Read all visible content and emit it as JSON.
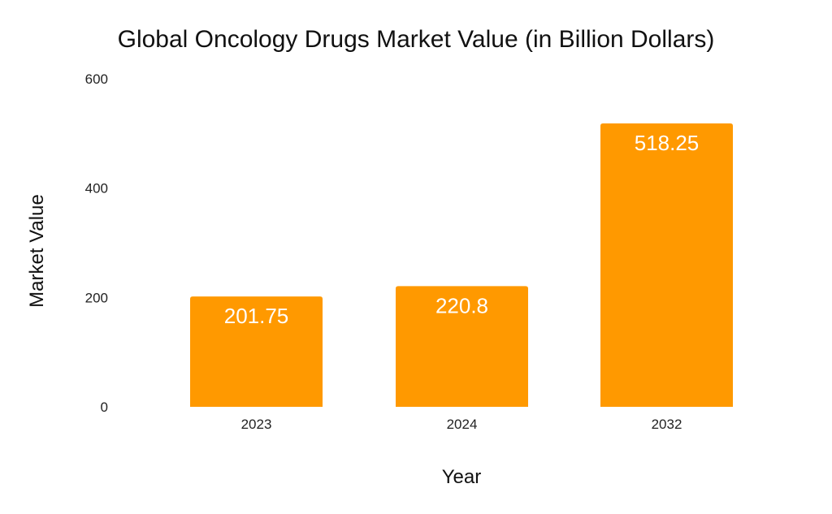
{
  "chart_data": {
    "type": "bar",
    "title": "Global Oncology Drugs Market Value (in Billion Dollars)",
    "xlabel": "Year",
    "ylabel": "Market Value",
    "categories": [
      "2023",
      "2024",
      "2032"
    ],
    "values": [
      201.75,
      220.8,
      518.25
    ],
    "data_labels": [
      "201.75",
      "220.8",
      "518.25"
    ],
    "ylim": [
      0,
      600
    ],
    "yticks": [
      0,
      200,
      400,
      600
    ],
    "ytick_labels": [
      "0",
      "200",
      "400",
      "600"
    ],
    "grid": false,
    "bar_color": "#FF9900"
  }
}
